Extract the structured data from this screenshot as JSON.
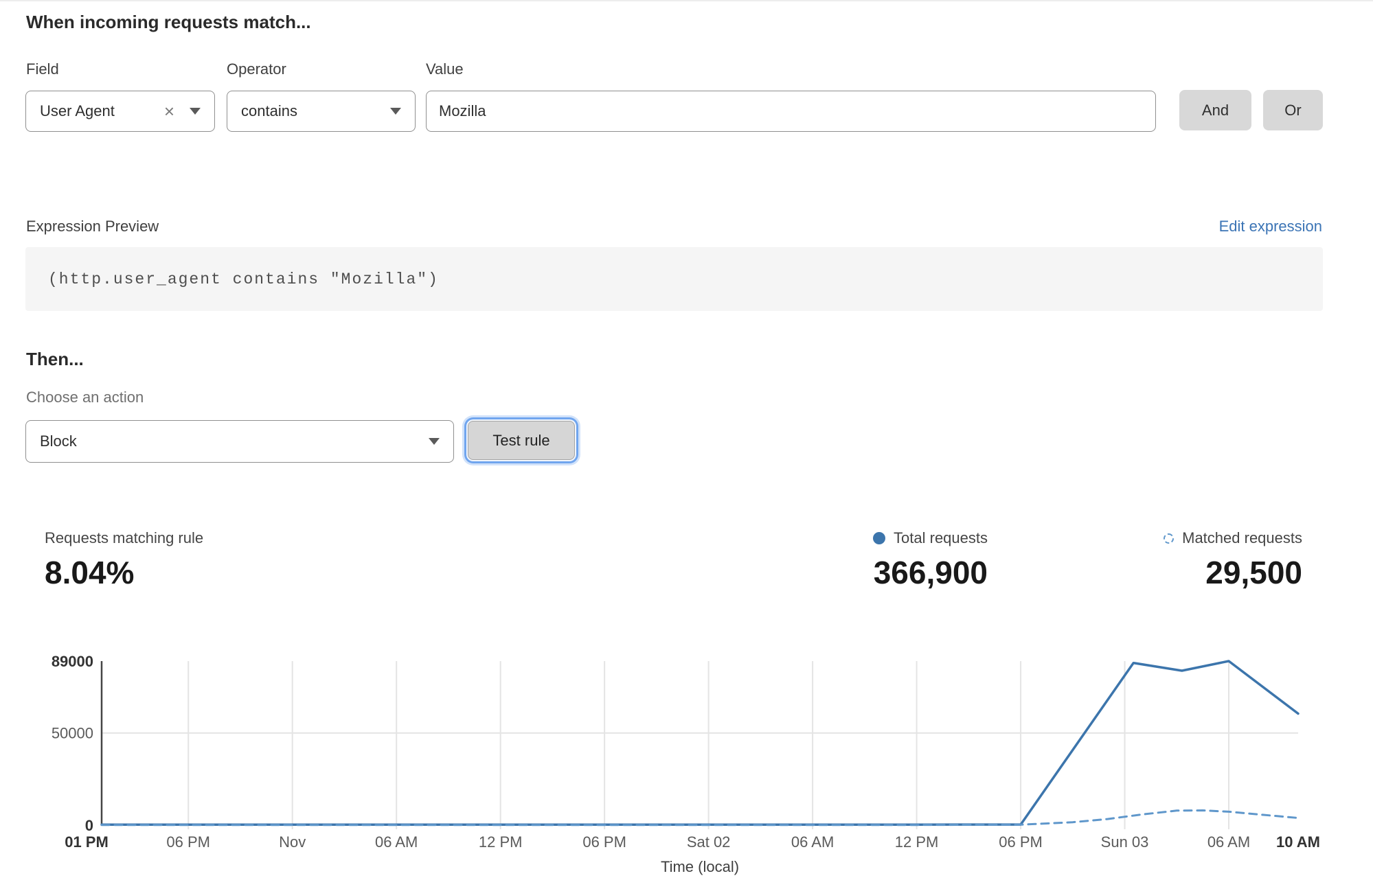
{
  "rule_builder": {
    "heading": "When incoming requests match...",
    "field": {
      "label": "Field",
      "value": "User Agent"
    },
    "operator": {
      "label": "Operator",
      "value": "contains"
    },
    "value": {
      "label": "Value",
      "value": "Mozilla"
    },
    "and_button": "And",
    "or_button": "Or"
  },
  "icons": {
    "clear": "×"
  },
  "expression": {
    "label": "Expression Preview",
    "edit_link": "Edit expression",
    "code": "(http.user_agent contains \"Mozilla\")"
  },
  "action": {
    "heading": "Then...",
    "choose_label": "Choose an action",
    "selected": "Block",
    "test_button": "Test rule"
  },
  "stats": {
    "matching": {
      "label": "Requests matching rule",
      "value": "8.04%"
    },
    "total": {
      "label": "Total requests",
      "value": "366,900"
    },
    "matched": {
      "label": "Matched requests",
      "value": "29,500"
    }
  },
  "colors": {
    "line_total": "#3c75ac",
    "line_matched": "#5f97cb",
    "link_blue": "#3b74b5",
    "grid": "#e4e4e4",
    "axis": "#454545",
    "tick_regular": "#5a5a5a",
    "tick_bold": "#333333",
    "button_gray": "#d8d8d8",
    "focus_ring_blue": "#70a5ee"
  },
  "chart_data": {
    "type": "line",
    "title": "",
    "xlabel": "Time (local)",
    "ylabel": "",
    "x_unit": "hours from Thu 01 PM",
    "xlim": [
      0,
      69
    ],
    "ylim": [
      0,
      89000
    ],
    "grid": "vertical at 6h ticks, horizontal at 50000",
    "legend_position": "top-right stats row",
    "x_ticks": [
      {
        "h": 0,
        "label": "01 PM",
        "bold": true,
        "grid": false
      },
      {
        "h": 5,
        "label": "06 PM",
        "bold": false,
        "grid": true
      },
      {
        "h": 11,
        "label": "Nov",
        "bold": false,
        "grid": true
      },
      {
        "h": 17,
        "label": "06 AM",
        "bold": false,
        "grid": true
      },
      {
        "h": 23,
        "label": "12 PM",
        "bold": false,
        "grid": true
      },
      {
        "h": 29,
        "label": "06 PM",
        "bold": false,
        "grid": true
      },
      {
        "h": 35,
        "label": "Sat 02",
        "bold": false,
        "grid": true
      },
      {
        "h": 41,
        "label": "06 AM",
        "bold": false,
        "grid": true
      },
      {
        "h": 47,
        "label": "12 PM",
        "bold": false,
        "grid": true
      },
      {
        "h": 53,
        "label": "06 PM",
        "bold": false,
        "grid": true
      },
      {
        "h": 59,
        "label": "Sun 03",
        "bold": false,
        "grid": true
      },
      {
        "h": 65,
        "label": "06 AM",
        "bold": false,
        "grid": true
      },
      {
        "h": 69,
        "label": "10 AM",
        "bold": true,
        "grid": false
      }
    ],
    "y_ticks": [
      {
        "v": 0,
        "label": "0",
        "bold": true,
        "grid": false
      },
      {
        "v": 50000,
        "label": "50000",
        "bold": false,
        "grid": true
      },
      {
        "v": 89000,
        "label": "89000",
        "bold": true,
        "grid": false
      }
    ],
    "series": [
      {
        "name": "Total requests",
        "style": "solid",
        "color": "#3c75ac",
        "points": [
          [
            0,
            300
          ],
          [
            5,
            300
          ],
          [
            11,
            300
          ],
          [
            17,
            300
          ],
          [
            23,
            300
          ],
          [
            29,
            300
          ],
          [
            35,
            300
          ],
          [
            41,
            300
          ],
          [
            47,
            300
          ],
          [
            53,
            350
          ],
          [
            59.5,
            88000
          ],
          [
            62.3,
            83800
          ],
          [
            65,
            89000
          ],
          [
            69,
            60500
          ]
        ]
      },
      {
        "name": "Matched requests",
        "style": "dashed",
        "color": "#5f97cb",
        "points": [
          [
            0,
            130
          ],
          [
            5,
            130
          ],
          [
            11,
            130
          ],
          [
            17,
            130
          ],
          [
            23,
            130
          ],
          [
            29,
            130
          ],
          [
            35,
            130
          ],
          [
            41,
            130
          ],
          [
            47,
            130
          ],
          [
            53,
            250
          ],
          [
            56,
            1600
          ],
          [
            58,
            3300
          ],
          [
            60,
            5800
          ],
          [
            62,
            7900
          ],
          [
            63.5,
            8000
          ],
          [
            65,
            7300
          ],
          [
            67,
            5600
          ],
          [
            69,
            3900
          ]
        ]
      }
    ]
  }
}
